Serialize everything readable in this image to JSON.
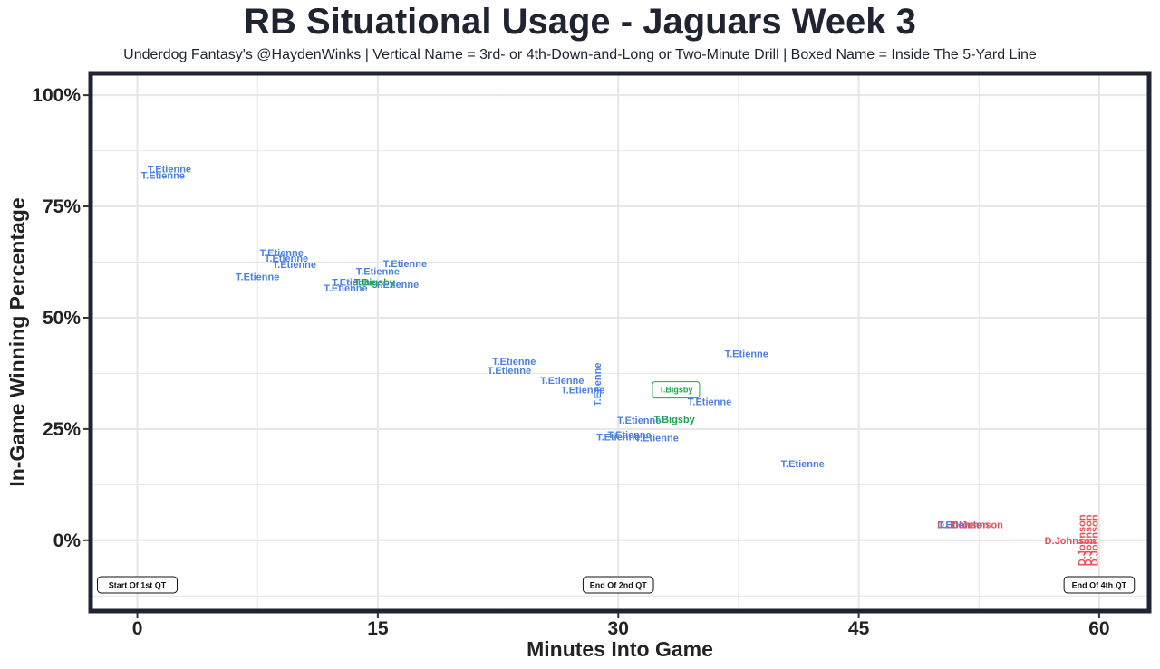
{
  "chart_data": {
    "type": "scatter",
    "title": "RB Situational Usage - Jaguars Week 3",
    "subtitle": "Underdog Fantasy's @HaydenWinks | Vertical Name = 3rd- or 4th-Down-and-Long or Two-Minute Drill | Boxed Name = Inside The 5-Yard Line",
    "xlabel": "Minutes Into Game",
    "ylabel": "In-Game Winning Percentage",
    "xlim": [
      -2.8,
      63.0
    ],
    "ylim": [
      -0.155,
      1.045
    ],
    "xticks": [
      0,
      15,
      30,
      45,
      60
    ],
    "xtick_labels": [
      "0",
      "15",
      "30",
      "45",
      "60"
    ],
    "yticks": [
      0,
      0.25,
      0.5,
      0.75,
      1.0
    ],
    "ytick_labels": [
      "0%",
      "25%",
      "50%",
      "75%",
      "100%"
    ],
    "grid": true,
    "colors": {
      "T.Etienne": "#4d80e4",
      "T.Bigsby": "#1aa64b",
      "D.Johnson": "#e4525a",
      "frame": "#1f2430",
      "grid": "#e6e6e6"
    },
    "points": [
      {
        "player": "T.Etienne",
        "x": 2.0,
        "y": 0.834,
        "style": "normal"
      },
      {
        "player": "T.Etienne",
        "x": 1.6,
        "y": 0.82,
        "style": "normal"
      },
      {
        "player": "T.Etienne",
        "x": 9.0,
        "y": 0.646,
        "style": "normal"
      },
      {
        "player": "T.Etienne",
        "x": 9.3,
        "y": 0.634,
        "style": "normal"
      },
      {
        "player": "T.Etienne",
        "x": 9.8,
        "y": 0.62,
        "style": "normal"
      },
      {
        "player": "T.Etienne",
        "x": 7.5,
        "y": 0.592,
        "style": "normal"
      },
      {
        "player": "T.Etienne",
        "x": 16.7,
        "y": 0.622,
        "style": "normal"
      },
      {
        "player": "T.Etienne",
        "x": 15.0,
        "y": 0.605,
        "style": "normal"
      },
      {
        "player": "T.Etienne",
        "x": 13.5,
        "y": 0.58,
        "style": "normal"
      },
      {
        "player": "T.Bigsby",
        "x": 14.8,
        "y": 0.58,
        "style": "normal"
      },
      {
        "player": "T.Etienne",
        "x": 16.2,
        "y": 0.575,
        "style": "normal"
      },
      {
        "player": "T.Etienne",
        "x": 13.0,
        "y": 0.567,
        "style": "normal"
      },
      {
        "player": "T.Etienne",
        "x": 23.5,
        "y": 0.402,
        "style": "normal"
      },
      {
        "player": "T.Etienne",
        "x": 23.2,
        "y": 0.382,
        "style": "normal"
      },
      {
        "player": "T.Etienne",
        "x": 26.5,
        "y": 0.36,
        "style": "normal"
      },
      {
        "player": "T.Etienne",
        "x": 27.8,
        "y": 0.338,
        "style": "normal"
      },
      {
        "player": "T.Etienne",
        "x": 28.7,
        "y": 0.35,
        "style": "vertical"
      },
      {
        "player": "T.Etienne",
        "x": 38.0,
        "y": 0.42,
        "style": "normal"
      },
      {
        "player": "T.Bigsby",
        "x": 33.6,
        "y": 0.338,
        "style": "boxed"
      },
      {
        "player": "T.Etienne",
        "x": 35.7,
        "y": 0.312,
        "style": "normal"
      },
      {
        "player": "T.Etienne",
        "x": 31.3,
        "y": 0.27,
        "style": "normal"
      },
      {
        "player": "T.Bigsby",
        "x": 33.5,
        "y": 0.272,
        "style": "normal"
      },
      {
        "player": "T.Etienne",
        "x": 30.7,
        "y": 0.238,
        "style": "normal"
      },
      {
        "player": "T.Etienne",
        "x": 30.0,
        "y": 0.232,
        "style": "normal"
      },
      {
        "player": "T.Etienne",
        "x": 32.4,
        "y": 0.23,
        "style": "normal"
      },
      {
        "player": "T.Etienne",
        "x": 41.5,
        "y": 0.172,
        "style": "normal"
      },
      {
        "player": "D.Johnson",
        "x": 51.5,
        "y": 0.035,
        "style": "normal"
      },
      {
        "player": "T.Etienne",
        "x": 51.3,
        "y": 0.035,
        "style": "normal"
      },
      {
        "player": "D.Johnson",
        "x": 52.4,
        "y": 0.035,
        "style": "normal"
      },
      {
        "player": "D.Johnson",
        "x": 58.2,
        "y": 0.0,
        "style": "normal"
      },
      {
        "player": "D.Johnson",
        "x": 58.9,
        "y": 0.0,
        "style": "vertical"
      },
      {
        "player": "D.Johnson",
        "x": 59.3,
        "y": 0.0,
        "style": "vertical"
      },
      {
        "player": "D.Johnson",
        "x": 59.7,
        "y": 0.0,
        "style": "vertical"
      }
    ],
    "quarter_markers": [
      {
        "label": "Start Of 1st QT",
        "x": 0,
        "y": -0.1
      },
      {
        "label": "End Of 2nd QT",
        "x": 30,
        "y": -0.1
      },
      {
        "label": "End Of 4th QT",
        "x": 60,
        "y": -0.1
      }
    ]
  }
}
